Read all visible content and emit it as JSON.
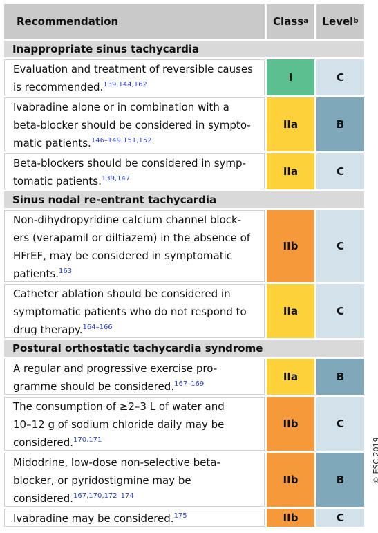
{
  "header": {
    "recommendation": "Recommendation",
    "class": "Class",
    "class_note": "a",
    "level": "Level",
    "level_note": "b"
  },
  "class_colors": {
    "I": "#5cbf8f",
    "IIa": "#fdd13a",
    "IIb": "#f5993b"
  },
  "level_colors": {
    "B": "#7fa9ba",
    "C": "#d3e2ea"
  },
  "sections": [
    {
      "title": "Inappropriate sinus tachycardia",
      "rows": [
        {
          "lines": [
            "Evaluation and treatment of reversible causes",
            "is recommended."
          ],
          "refs": "139,144,162",
          "class": "I",
          "level": "C"
        },
        {
          "lines": [
            "Ivabradine alone or in combination with a",
            "beta-blocker should be considered in sympto-",
            "matic patients."
          ],
          "refs": "146–149,151,152",
          "class": "IIa",
          "level": "B"
        },
        {
          "lines": [
            "Beta-blockers should be considered in symp-",
            "tomatic patients."
          ],
          "refs": "139,147",
          "class": "IIa",
          "level": "C"
        }
      ]
    },
    {
      "title": "Sinus nodal re-entrant tachycardia",
      "rows": [
        {
          "lines": [
            "Non-dihydropyridine calcium channel block-",
            "ers (verapamil or diltiazem) in the absence of",
            "HFrEF, may be considered in symptomatic",
            "patients."
          ],
          "refs": "163",
          "class": "IIb",
          "level": "C"
        },
        {
          "lines": [
            "Catheter ablation should be considered in",
            "symptomatic patients who do not respond to",
            "drug therapy."
          ],
          "refs": "164–166",
          "class": "IIa",
          "level": "C"
        }
      ]
    },
    {
      "title": "Postural orthostatic tachycardia syndrome",
      "rows": [
        {
          "lines": [
            "A regular and progressive exercise pro-",
            "gramme should be considered."
          ],
          "refs": "167–169",
          "class": "IIa",
          "level": "B"
        },
        {
          "lines": [
            "The consumption of ≥2–3 L of water and",
            "10–12 g of sodium chloride daily may be",
            "considered."
          ],
          "refs": "170,171",
          "class": "IIb",
          "level": "C"
        },
        {
          "lines": [
            "Midodrine, low-dose non-selective beta-",
            "blocker, or pyridostigmine may be",
            "considered."
          ],
          "refs": "167,170,172–174",
          "class": "IIb",
          "level": "B"
        },
        {
          "lines": [
            "Ivabradine may be considered."
          ],
          "refs": "175",
          "class": "IIb",
          "level": "C"
        }
      ]
    }
  ],
  "copyright": "© ESC 2019"
}
